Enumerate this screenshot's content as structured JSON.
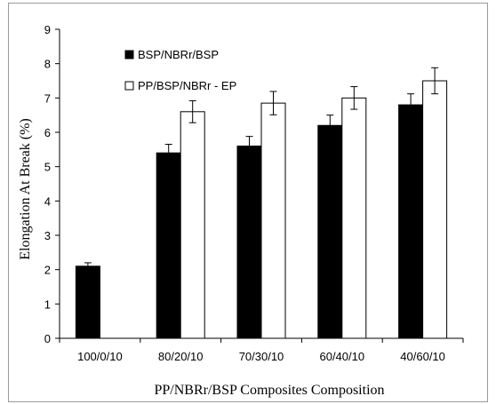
{
  "chart_data": {
    "type": "bar",
    "title": "",
    "xlabel": "PP/NBRr/BSP Composites Composition",
    "ylabel": "Elongation At Break (%)",
    "ylim": [
      0,
      9
    ],
    "yticks": [
      0,
      1,
      2,
      3,
      4,
      5,
      6,
      7,
      8,
      9
    ],
    "categories": [
      "100/0/10",
      "80/20/10",
      "70/30/10",
      "60/40/10",
      "40/60/10"
    ],
    "legend_position": "top-left",
    "grid": false,
    "series": [
      {
        "name": "BSP/NBRr/BSP",
        "color": "#000000",
        "values": [
          2.1,
          5.4,
          5.6,
          6.2,
          6.8
        ],
        "errors": [
          0.1,
          0.25,
          0.28,
          0.3,
          0.32
        ]
      },
      {
        "name": "PP/BSP/NBRr - EP",
        "color": "#ffffff",
        "values": [
          null,
          6.6,
          6.85,
          7.0,
          7.5
        ],
        "errors": [
          null,
          0.32,
          0.34,
          0.33,
          0.38
        ]
      }
    ]
  }
}
